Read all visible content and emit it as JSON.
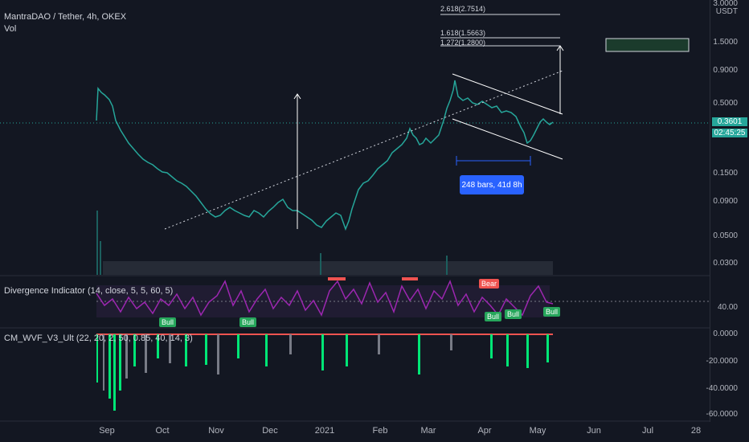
{
  "header": {
    "title": "MantraDAO / Tether, 4h, OKEX",
    "vol_label": "Vol"
  },
  "currency": "USDT",
  "price_axis": [
    "3.0000",
    "1.5000",
    "0.9000",
    "0.5000",
    "0.1500",
    "0.0900",
    "0.0500",
    "0.0300"
  ],
  "current_price": "0.3601",
  "countdown": "02:45:25",
  "fib_labels": [
    "2.618(2.7514)",
    "1.618(1.5663)",
    "1.272(1.2800)"
  ],
  "measure_tooltip": "248 bars, 41d 8h",
  "divergence": {
    "label": "Divergence Indicator (14, close, 5, 5, 60, 5)",
    "level": "40.00",
    "bear_label": "Bear",
    "bull_label": "Bull"
  },
  "wvf": {
    "label": "CM_WVF_V3_Ult (22, 20, 2, 50, 0.85, 40, 14, 3)",
    "axis": [
      "0.0000",
      "-20.0000",
      "-40.0000",
      "-60.0000"
    ]
  },
  "time_axis": [
    "Sep",
    "Oct",
    "Nov",
    "Dec",
    "2021",
    "Feb",
    "Mar",
    "Apr",
    "May",
    "Jun",
    "Jul",
    "28"
  ],
  "colors": {
    "bg": "#131722",
    "up": "#26a69a",
    "down": "#ef5350",
    "rsi": "#9c27b0",
    "wvf_green": "#00e676",
    "wvf_gray": "#787b86"
  }
}
